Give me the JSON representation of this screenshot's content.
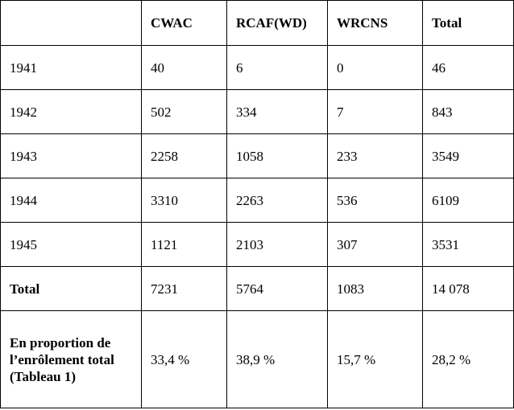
{
  "header": [
    "",
    "CWAC",
    "RCAF(WD)",
    "WRCNS",
    "Total"
  ],
  "rows": [
    [
      "1941",
      "40",
      "6",
      "0",
      "46"
    ],
    [
      "1942",
      "502",
      "334",
      "7",
      "843"
    ],
    [
      "1943",
      "2258",
      "1058",
      "233",
      "3549"
    ],
    [
      "1944",
      "3310",
      "2263",
      "536",
      "6109"
    ],
    [
      "1945",
      "1121",
      "2103",
      "307",
      "3531"
    ]
  ],
  "total_row": [
    "Total",
    "7231",
    "5764",
    "1083",
    "14 078"
  ],
  "proportion_row": {
    "label_lines": [
      "En proportion de",
      "l’enrôlement total",
      "(Tableau 1)"
    ],
    "values": [
      "33,4 %",
      "38,9 %",
      "15,7 %",
      "28,2 %"
    ]
  }
}
